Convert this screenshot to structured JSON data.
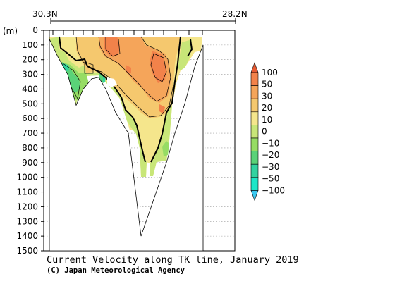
{
  "chart_data": {
    "type": "heatmap",
    "title": "Current Velocity along TK line, January 2019",
    "credit": "(C) Japan Meteorological Agency",
    "top_axis": {
      "left_label": "30.3N",
      "right_label": "28.2N"
    },
    "ylabel": "(m)",
    "y_ticks": [
      0,
      100,
      200,
      300,
      400,
      500,
      600,
      700,
      800,
      900,
      1000,
      1100,
      1200,
      1300,
      1400,
      1500
    ],
    "ylim": [
      0,
      1500
    ],
    "grid": "dotted horizontal",
    "colorbar": {
      "labels": [
        "100",
        "50",
        "30",
        "20",
        "10",
        "0",
        "−10",
        "−20",
        "−30",
        "−50",
        "−100"
      ],
      "colors": [
        "#e65a32",
        "#f2824a",
        "#f5a55a",
        "#f5c86e",
        "#f5e68c",
        "#c8e678",
        "#96dc64",
        "#5ad278",
        "#32d2a0",
        "#1ee6c8",
        "#3cc8f0"
      ],
      "extend": "both"
    },
    "bottom_profile_depth_m": [
      0,
      60,
      180,
      300,
      510,
      400,
      330,
      320,
      400,
      560,
      700,
      1400,
      900,
      700,
      500,
      250,
      150,
      100
    ],
    "fields": [
      {
        "name": "strong-northeastward-core",
        "depth_m": [
          50,
          150
        ],
        "velocity": 30
      },
      {
        "name": "main-positive-core",
        "depth_m": [
          100,
          450
        ],
        "velocity": 20
      },
      {
        "name": "southward-flow-west",
        "depth_m": [
          230,
          480
        ],
        "velocity": -20
      }
    ]
  }
}
